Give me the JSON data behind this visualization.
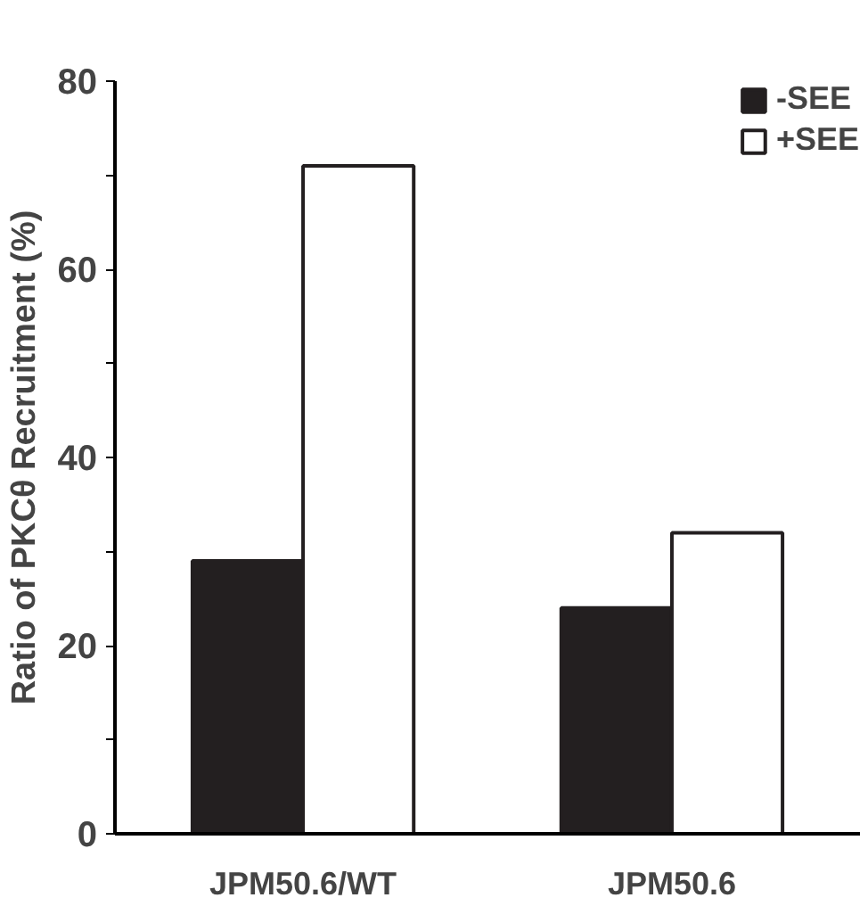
{
  "chart_data": {
    "type": "bar",
    "ylabel": "Ratio of PKCθ Recruitment (%)",
    "categories": [
      "JPM50.6/WT",
      "JPM50.6"
    ],
    "series": [
      {
        "name": "-SEE",
        "color": "#231f20",
        "values": [
          29,
          24
        ]
      },
      {
        "name": "+SEE",
        "color": "#ffffff",
        "values": [
          71,
          32
        ]
      }
    ],
    "ylim": [
      0,
      80
    ],
    "yticks": [
      0,
      {
        "value": 10,
        "label": null
      },
      20,
      {
        "value": 30,
        "label": null
      },
      40,
      {
        "value": 50,
        "label": null
      },
      60,
      {
        "value": 70,
        "label": null
      },
      80
    ],
    "grid": false,
    "legend": "top right"
  }
}
